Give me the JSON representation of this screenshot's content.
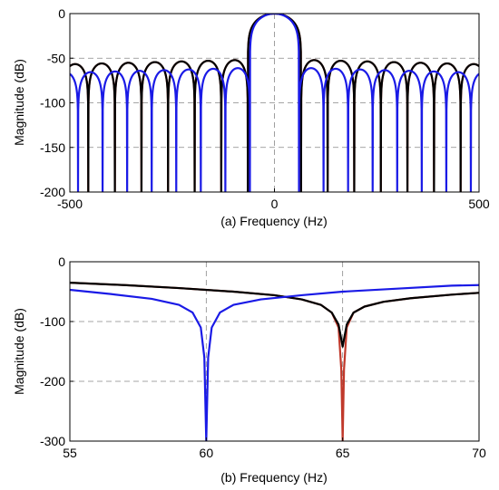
{
  "chart_data": [
    {
      "type": "line",
      "xlabel": "(a) Frequency (Hz)",
      "ylabel": "Magnitude (dB)",
      "xlim": [
        -500,
        500
      ],
      "ylim": [
        -200,
        0
      ],
      "xticks": [
        -500,
        0,
        500
      ],
      "yticks": [
        0,
        -50,
        -100,
        -150,
        -200
      ],
      "xtick_labels": [
        "-500",
        "0",
        "500"
      ],
      "ytick_labels": [
        "0",
        "-50",
        "-100",
        "-150",
        "-200"
      ],
      "grid": "dashed",
      "series": [
        {
          "color": "#c0392b",
          "pattern": "sinc",
          "width_hz": 65,
          "shift_hz": 0,
          "main_lobe_peak_db": 0,
          "side_lobe_level_db": -57,
          "null_floor_db": -200
        },
        {
          "color": "#000000",
          "pattern": "sinc",
          "width_hz": 65,
          "shift_hz": 0,
          "main_lobe_peak_db": 0,
          "side_lobe_level_db": -57,
          "null_floor_db": -200
        },
        {
          "color": "#1a1ae6",
          "pattern": "sinc",
          "width_hz": 60,
          "shift_hz": 0,
          "main_lobe_peak_db": 0,
          "side_lobe_level_db": -66,
          "null_floor_db": -200
        }
      ]
    },
    {
      "type": "line",
      "xlabel": "(b) Frequency (Hz)",
      "ylabel": "Magnitude (dB)",
      "xlim": [
        55,
        70
      ],
      "ylim": [
        -300,
        0
      ],
      "xticks": [
        55,
        60,
        65,
        70
      ],
      "yticks": [
        0,
        -100,
        -200,
        -300
      ],
      "xtick_labels": [
        "55",
        "60",
        "65",
        "70"
      ],
      "ytick_labels": [
        "0",
        "-100",
        "-200",
        "-300"
      ],
      "grid": "dashed",
      "series": [
        {
          "color": "#c0392b",
          "x": [
            55,
            57,
            59,
            61,
            62.5,
            63.5,
            64.2,
            64.6,
            64.85,
            64.95,
            65.0,
            65.05,
            65.15,
            65.4,
            65.8,
            66.5,
            67.5,
            69,
            70
          ],
          "y": [
            -35,
            -39,
            -44,
            -50,
            -56,
            -63,
            -72,
            -85,
            -110,
            -180,
            -300,
            -180,
            -110,
            -85,
            -75,
            -67,
            -61,
            -55,
            -52
          ]
        },
        {
          "color": "#000000",
          "x": [
            55,
            57,
            59,
            61,
            62.5,
            63.5,
            64.2,
            64.6,
            64.85,
            65.0,
            65.15,
            65.4,
            65.8,
            66.5,
            67.5,
            69,
            70
          ],
          "y": [
            -35,
            -39,
            -44,
            -50,
            -56,
            -63,
            -72,
            -85,
            -105,
            -142,
            -105,
            -85,
            -75,
            -67,
            -61,
            -55,
            -52
          ]
        },
        {
          "color": "#1a1ae6",
          "x": [
            55,
            56.5,
            58,
            59,
            59.5,
            59.8,
            59.93,
            60.0,
            60.07,
            60.2,
            60.5,
            61,
            62,
            63.5,
            65,
            67,
            69,
            70
          ],
          "y": [
            -47,
            -54,
            -62,
            -72,
            -85,
            -110,
            -160,
            -300,
            -160,
            -110,
            -85,
            -72,
            -63,
            -56,
            -50,
            -45,
            -40,
            -39
          ]
        }
      ]
    }
  ]
}
